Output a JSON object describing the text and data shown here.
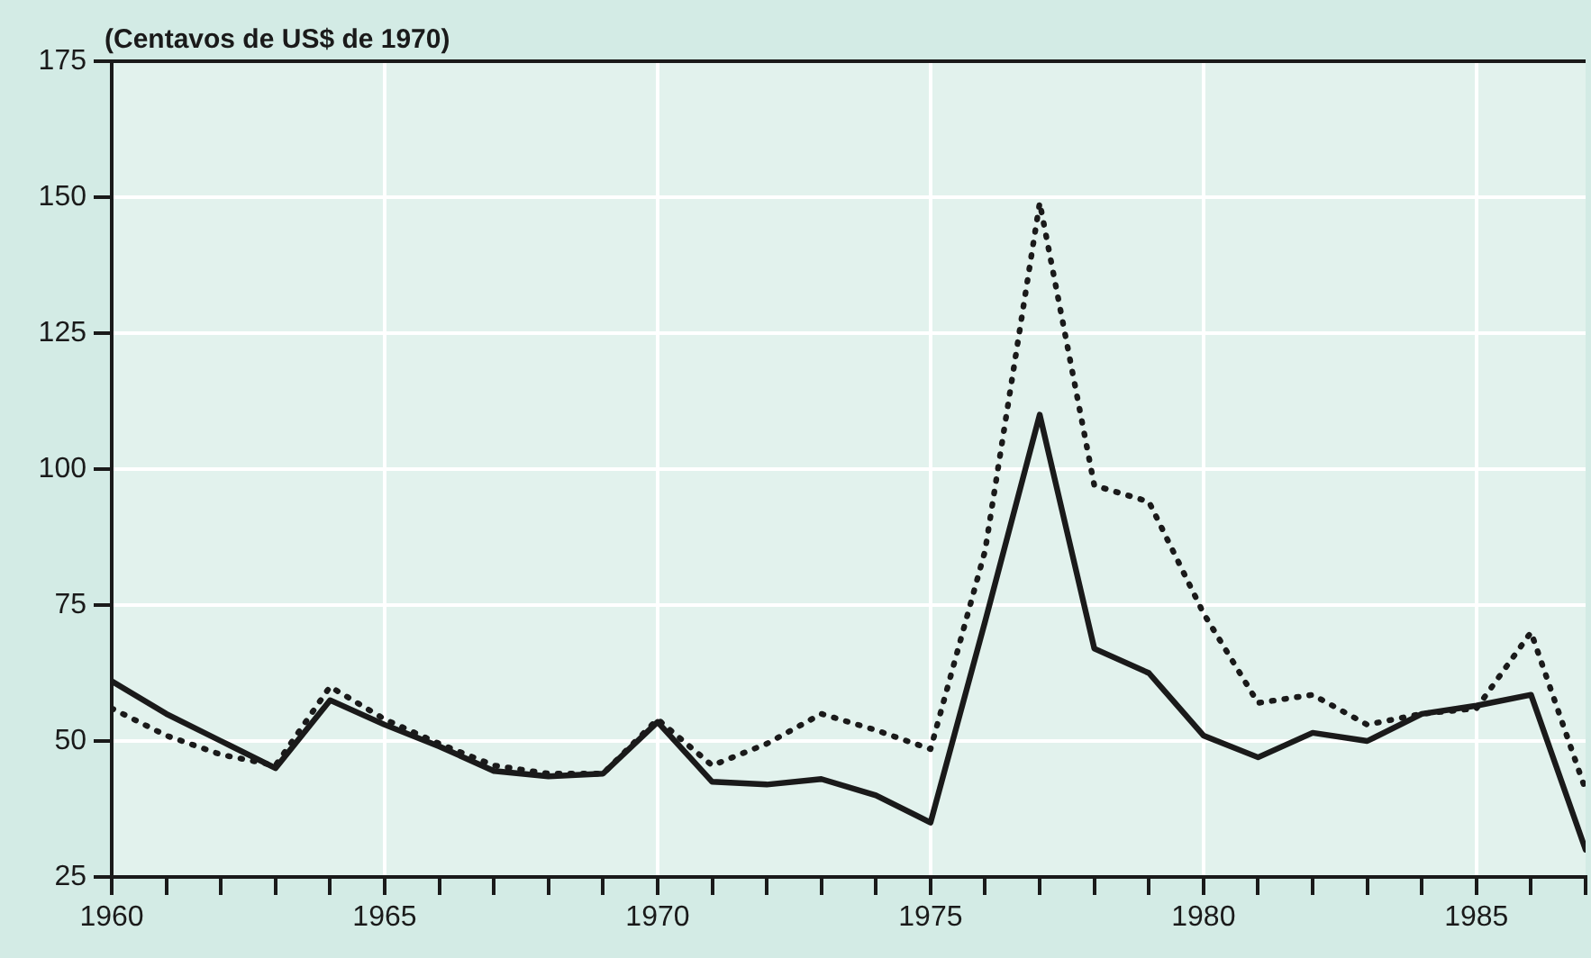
{
  "chart_data": {
    "type": "line",
    "ylabel": "(Centavos de US$ de 1970)",
    "x": [
      1960,
      1961,
      1962,
      1963,
      1964,
      1965,
      1966,
      1967,
      1968,
      1969,
      1970,
      1971,
      1972,
      1973,
      1974,
      1975,
      1976,
      1977,
      1978,
      1979,
      1980,
      1981,
      1982,
      1983,
      1984,
      1985,
      1986,
      1987
    ],
    "series": [
      {
        "color": "#1a1a1a",
        "line_style": "solid",
        "values": [
          61,
          55,
          50,
          45,
          57.5,
          53,
          49,
          44.5,
          43.5,
          44,
          53.5,
          42.5,
          42,
          43,
          40,
          35,
          72,
          110,
          67,
          62.5,
          51,
          47,
          51.5,
          50,
          55,
          56.5,
          58.5,
          30
        ]
      },
      {
        "color": "#1a1a1a",
        "line_style": "dotted",
        "values": [
          56,
          51,
          47.5,
          45.5,
          60,
          54,
          49.5,
          45.5,
          44,
          44,
          54,
          45.5,
          49.5,
          55,
          52,
          48.5,
          85,
          149,
          97,
          94,
          73.5,
          57,
          58.5,
          53,
          55,
          56,
          70,
          41
        ]
      }
    ],
    "xlim": [
      1960,
      1987
    ],
    "xticks": [
      1960,
      {
        "value": 1961,
        "label": null
      },
      {
        "value": 1962,
        "label": null
      },
      {
        "value": 1963,
        "label": null
      },
      {
        "value": 1964,
        "label": null
      },
      1965,
      {
        "value": 1966,
        "label": null
      },
      {
        "value": 1967,
        "label": null
      },
      {
        "value": 1968,
        "label": null
      },
      {
        "value": 1969,
        "label": null
      },
      1970,
      {
        "value": 1971,
        "label": null
      },
      {
        "value": 1972,
        "label": null
      },
      {
        "value": 1973,
        "label": null
      },
      {
        "value": 1974,
        "label": null
      },
      1975,
      {
        "value": 1976,
        "label": null
      },
      {
        "value": 1977,
        "label": null
      },
      {
        "value": 1978,
        "label": null
      },
      {
        "value": 1979,
        "label": null
      },
      1980,
      {
        "value": 1981,
        "label": null
      },
      {
        "value": 1982,
        "label": null
      },
      {
        "value": 1983,
        "label": null
      },
      {
        "value": 1984,
        "label": null
      },
      1985,
      {
        "value": 1986,
        "label": null
      },
      {
        "value": 1987,
        "label": null
      }
    ],
    "ylim": [
      25,
      175
    ],
    "yticks": [
      25,
      50,
      75,
      100,
      125,
      150,
      175
    ],
    "grid": true,
    "legend": false,
    "marker": "none"
  }
}
